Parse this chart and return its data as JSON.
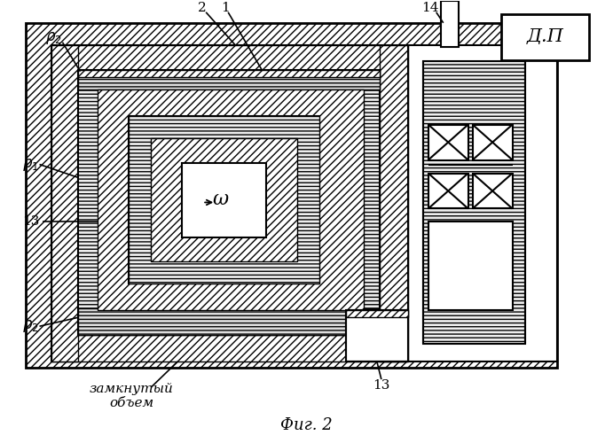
{
  "title": "Фиг. 2",
  "label_dp": "Д.П",
  "label_omega": "ω",
  "label_zamknuty": "замкнутый\nобъем",
  "bg_color": "#ffffff",
  "line_color": "#000000"
}
